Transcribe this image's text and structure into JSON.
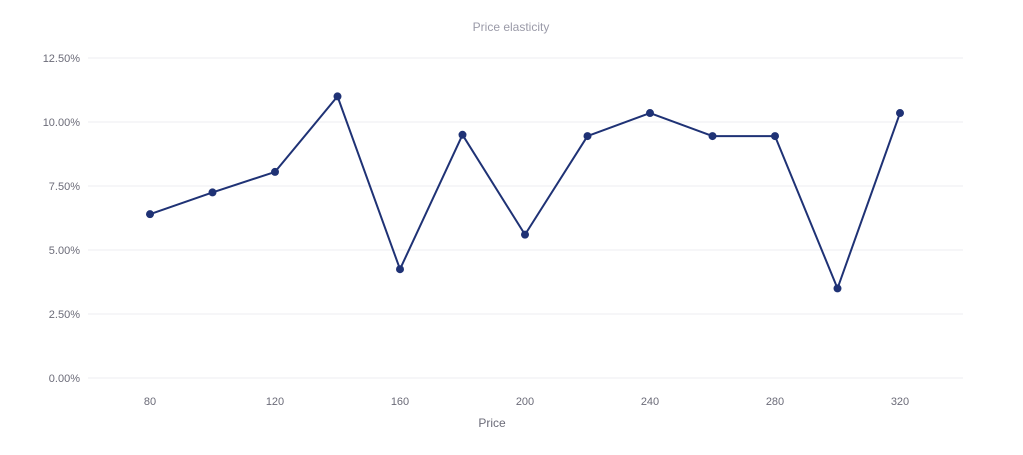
{
  "chart_data": {
    "type": "line",
    "title": "Price elasticity",
    "xlabel": "Price",
    "ylabel": "",
    "x": [
      80,
      100,
      120,
      140,
      160,
      180,
      200,
      220,
      240,
      260,
      280,
      300,
      320
    ],
    "x_ticks": [
      "80",
      "120",
      "160",
      "200",
      "240",
      "280",
      "320"
    ],
    "y_ticks": [
      "0.00%",
      "2.50%",
      "5.00%",
      "7.50%",
      "10.00%",
      "12.50%"
    ],
    "ylim": [
      0,
      12.5
    ],
    "xlim": [
      70,
      340
    ],
    "grid": true,
    "legend": "none",
    "series": [
      {
        "values": [
          6.4,
          7.25,
          8.05,
          11.0,
          4.25,
          9.5,
          5.6,
          9.45,
          10.35,
          9.45,
          9.45,
          3.5,
          10.35
        ]
      }
    ],
    "colors": {
      "line": "#1f3275",
      "grid": "#ececf0",
      "text": "#6b6b78",
      "title": "#9a9aa8"
    }
  }
}
